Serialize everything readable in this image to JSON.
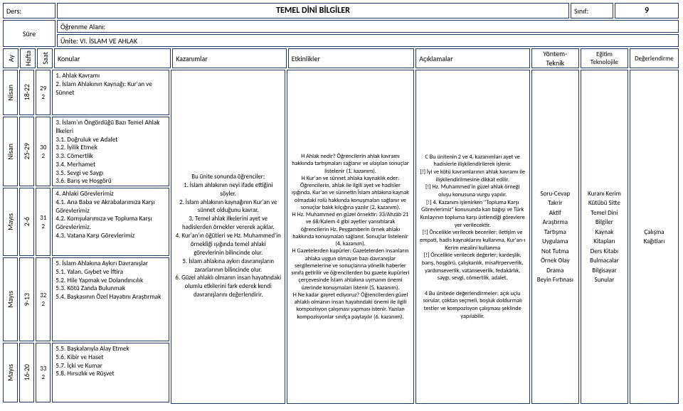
{
  "header": {
    "ders_label": "Ders:",
    "ders_value": "TEMEL DİNİ BİLGİLER",
    "sinif_label": "Sınıf:",
    "sinif_value": "9",
    "sure_label": "Süre",
    "ogrenme_label": "Öğrenme Alanı:",
    "unite_label": "Ünite: VI. İSLAM VE AHLAK"
  },
  "columns": {
    "ay": "Ay",
    "hafta": "Hafta",
    "saat": "Saat",
    "konular": "Konular",
    "kazanimlar": "Kazanımlar",
    "etkinlikler": "Etkinlikler",
    "aciklamalar": "Açıklamalar",
    "yontem": "Yöntem-Teknik",
    "egitim": "Eğitim Teknolojile",
    "degerlendirme": "Değerlendirme"
  },
  "months": [
    "Nisan",
    "Nisan",
    "Mayıs",
    "Mayıs",
    "Mayıs"
  ],
  "week_nums": [
    "18-22",
    "25-29",
    "2-6",
    "9-13",
    "16-20"
  ],
  "week_saat": [
    "29",
    "30",
    "31",
    "32",
    "33"
  ],
  "hours": [
    "2",
    "2",
    "2",
    "2",
    "2"
  ],
  "konular": [
    "1. Ahlak Kavramı\n2. İslam Ahlakının Kaynağı: Kur'an ve Sünnet",
    "3. İslam'ın Öngördüğü Bazı Temel Ahlak İlkeleri\n3.1. Doğruluk ve Adalet\n3.2. İyilik Etmek\n3.3. Cömertlik\n3.4. Merhamet\n3.5. Sevgi ve Saygı\n3.6. Barış ve Hoşgörü",
    "4. Ahlaki Görevlerimiz\n4.1. Ana Baba ve Akrabalarımıza Karşı Görevlerimiz\n4.2. Komşularımıza ve Topluma Karşı Görevlerimiz.\n4.3. Vatana Karşı Görevlerimiz",
    "5. İslam Ahlakına Aykırı Davranışlar\n5.1. Yalan, Gıybet ve İftira\n5.2. Hile Yapmak ve Dolandırıcılık\n5.3. Kötü Zanda Bulunmak\n5.4. Başkasının Özel Hayatını Araştırmak",
    "5.5. Başkalarıyla Alay Etmek\n5.6. Kibir ve Haset\n5.7. İçki ve Kumar\n5.8. Hırsızlık ve Rüşvet"
  ],
  "kazanimlar": "Bu ünite sonunda öğrenciler;\n1. İslam ahlakının neyi ifade ettiğini söyler.\n2. İslam ahlakının kaynağının Kur'an ve sünnet olduğunu kavrar.\n3. Temel ahlak ilkelerini ayet ve hadislerden örnekler vererek açıklar.\n4. Kur'an'ın öğütleri ve Hz. Muhammed'in örnekliği ışığında temel ahlaki görevlerinin bilincinde olur.\n5. İslam ahlakına aykırı davranışların zararlarının bilincinde olur.\n6. Güzel ahlaklı olmanın insan hayatındaki olumlu etkilerini fark ederek kendi davranışlarını değerlendirir.",
  "etkinlikler": "H Ahlak nedir? Öğrencilerin ahlak kavramı hakkında tartışmaları sağlanır ve ulaşılan sonuçlar listelenir (1. kazanım).\nH Kur'an ve sünnet ahlaka kaynaklık eder: Öğrencilerin, ahlak ile ilgili ayet ve hadisler ışığında, Kur'an ve sünnetin İslam ahlakına kaynak olmadaki rolü hakkında konuşmaları sağlanır ve sonuçlar balık kılçığına yazılır (2. kazanım).\nH Hz. Muhammed en güzel örnektir: 33/Ahzâb 21 ve 68/Kalem 4 gibi ayetler yansıtılarak öğrencilerin Hz. Peygamberin örnek ahlakı hakkında konuşmaları sağlanır. Sonuçlar listelenir (4. kazanım).\nH Gazetelerden kupürler: Gazetelerden insanların ahlaka uygun olmayan bazı davranışlar sergilemelerine ve sonuçlarına yönelik haberler sınıfa getirilir ve öğrencilerden bu gazete kupürleri çerçevesinde İslam ahlakına uymanın önemi üzerinde konuşmaları istenir (5. kazanım).\nH Ne kadar gayret ediyoruz? Öğrencilerden güzel ahlaklı olmanın insan hayatındaki önemi ile ilgili kompozisyon çalışması yapması istenir. Yazılan kompozisyonlar sınıfça paylaşılır (6. kazanım).",
  "aciklamalar": "C Bu ünitenin 2 ve 4. kazanımları ayet ve hadislerle ilişkilendirilerek işlenir.\n[!] İyi ve kötü kavramlarının ahlak kavramı ile ilişkilendirilmesine dikkat edilir.\n[!] Hz. Muhammed'in güzel ahlak örneği oluşu konusuna vurgu yapılır.\n[!] 4. Kazanım işlenirken \"Topluma Karşı Görevlerimiz\" konusunda kan bağışı ve Türk Kızılayının topluma karşı üstlendiği görevlere yer verilecektir.\n[!] Öncelikle verilecek beceriler; iletişim ve empati, hadis kaynaklarını kullanma, Kur'an-ı Kerim mealini kullanma\n[!] Öncelikle verilecek değerler; kardeşlik, barış, hoşgörü, çalışkanlık, misafirperverlik, yardımseverlik, vatanseverlik, fedakârlık, saygı, sevgi, cömertlik, adalet.\n\n4 Bu ünitede değerlendirmeler; açık uçlu sorular, çoktan seçmeli, boşluk doldurmalı testler ve kompozisyon çalışması şeklinde yapılabilir.",
  "yontem_list": [
    "Soru-Cevap",
    "Takrir",
    "Aktif",
    "Araştırma",
    "Tartışma",
    "Uygulama",
    "Not Tutma",
    "Örnek Olay",
    "Drama",
    "Beyin Fırtınası"
  ],
  "egitim_list": [
    "Kuranı Kerim",
    "Kütübü Sitte",
    "Temel Dini Bilgiler",
    "Kaynak Kitapları",
    "Ders Kitabı",
    "Bulmacalar",
    "Bilgisayar",
    "Sunular"
  ],
  "degerlendirme_list": [
    "Çalışma Kağıtları"
  ]
}
